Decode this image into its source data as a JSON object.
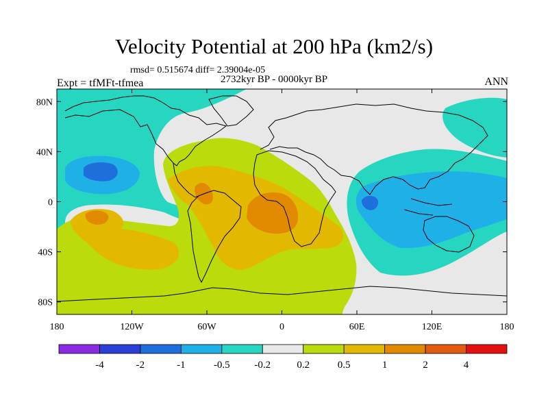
{
  "title": "Velocity Potential at 200 hPa (km2/s)",
  "stats_line": "rmsd= 0.515674 diff= 2.39004e-05",
  "left_label": "Expt = tfMFt-tfmea",
  "center_label": "2732kyr BP - 0000kyr BP",
  "right_label": "ANN",
  "lat_ticks": [
    {
      "lat": 80,
      "label": "80N"
    },
    {
      "lat": 40,
      "label": "40N"
    },
    {
      "lat": 0,
      "label": "0"
    },
    {
      "lat": -40,
      "label": "40S"
    },
    {
      "lat": -80,
      "label": "80S"
    }
  ],
  "lon_ticks": [
    {
      "lon": -180,
      "label": "180"
    },
    {
      "lon": -120,
      "label": "120W"
    },
    {
      "lon": -60,
      "label": "60W"
    },
    {
      "lon": 0,
      "label": "0"
    },
    {
      "lon": 60,
      "label": "60E"
    },
    {
      "lon": 120,
      "label": "120E"
    },
    {
      "lon": 180,
      "label": "180"
    }
  ],
  "colorbar": {
    "colors": [
      "#8a2be2",
      "#2a3fd6",
      "#1e6fdc",
      "#1fb0e8",
      "#26d6c0",
      "#e8e8e8",
      "#bcdb0c",
      "#e2b800",
      "#e18a00",
      "#e05a10",
      "#e41010"
    ],
    "labels": [
      "-4",
      "-2",
      "-1",
      "-0.5",
      "-0.2",
      "0.2",
      "0.5",
      "1",
      "2",
      "4"
    ]
  },
  "colors": {
    "background": "#e8e8e8",
    "coastline": "#000000"
  }
}
